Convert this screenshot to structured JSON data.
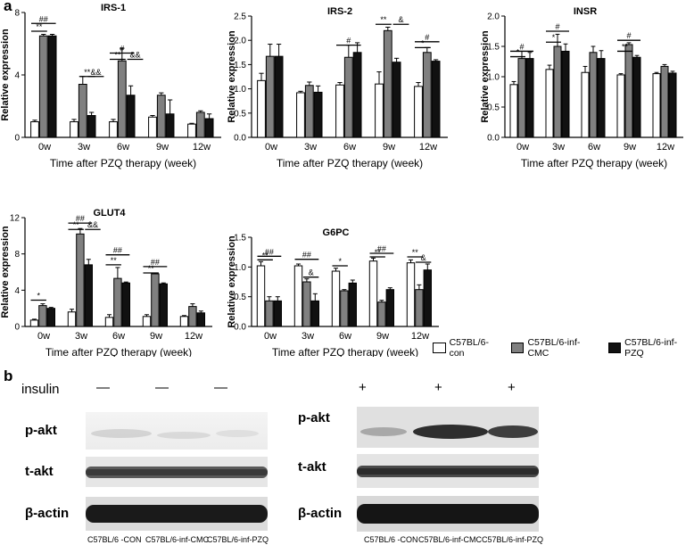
{
  "panel_a_label": "a",
  "panel_b_label": "b",
  "colors": {
    "con": "#ffffff",
    "cmc": "#808080",
    "pzq": "#111111"
  },
  "chart_data": [
    {
      "type": "bar",
      "title": "IRS-1",
      "categories": [
        "0w",
        "3w",
        "6w",
        "9w",
        "12w"
      ],
      "ylabel": "Relative expression",
      "xlabel": "Time after PZQ therapy (week)",
      "ylim": [
        0,
        8
      ],
      "yticks": [
        0,
        4,
        8
      ],
      "series": [
        {
          "name": "C57BL/6-con",
          "values": [
            1.0,
            1.0,
            1.0,
            1.3,
            0.85
          ],
          "err": [
            0.1,
            0.15,
            0.15,
            0.1,
            0.05
          ]
        },
        {
          "name": "C57BL/6-inf-CMC",
          "values": [
            6.5,
            3.4,
            4.9,
            2.7,
            1.6
          ],
          "err": [
            0.1,
            0.5,
            0.8,
            0.15,
            0.1
          ]
        },
        {
          "name": "C57BL/6-inf-PZQ",
          "values": [
            6.5,
            1.4,
            2.7,
            1.5,
            1.2
          ],
          "err": [
            0.1,
            0.2,
            0.6,
            0.9,
            0.3
          ]
        }
      ],
      "annotations": [
        {
          "text": "##",
          "x1": 0,
          "x2": 2,
          "y": 7.3
        },
        {
          "text": "**",
          "x1": 0,
          "x2": 1,
          "y": 6.8
        },
        {
          "text": "**",
          "x1": 1,
          "x2": 2,
          "y": 3.9
        },
        {
          "text": "&&",
          "x1": 2,
          "x2": 3,
          "y": 3.9
        },
        {
          "text": "#",
          "x1": 0,
          "x2": 2,
          "y": 5.4
        },
        {
          "text": "**",
          "x1": 0,
          "x2": 1,
          "y": 5.0
        },
        {
          "text": "&&",
          "x1": 2,
          "x2": 3,
          "y": 5.0
        }
      ]
    },
    {
      "type": "bar",
      "title": "IRS-2",
      "categories": [
        "0w",
        "3w",
        "6w",
        "9w",
        "12w"
      ],
      "ylabel": "Relative expression",
      "xlabel": "Time after PZQ therapy (week)",
      "ylim": [
        0,
        2.5
      ],
      "yticks": [
        0,
        0.5,
        1.0,
        1.5,
        2.0,
        2.5
      ],
      "series": [
        {
          "name": "C57BL/6-con",
          "values": [
            1.17,
            0.92,
            1.08,
            1.1,
            1.05
          ],
          "err": [
            0.15,
            0.03,
            0.05,
            0.25,
            0.08
          ]
        },
        {
          "name": "C57BL/6-inf-CMC",
          "values": [
            1.67,
            1.07,
            1.65,
            2.2,
            1.75
          ],
          "err": [
            0.25,
            0.07,
            0.25,
            0.07,
            0.1
          ]
        },
        {
          "name": "C57BL/6-inf-PZQ",
          "values": [
            1.67,
            0.93,
            1.75,
            1.55,
            1.57
          ],
          "err": [
            0.25,
            0.13,
            0.2,
            0.08,
            0.03
          ]
        }
      ],
      "annotations": [
        {
          "text": "#",
          "x1": 0,
          "x2": 2,
          "y": 1.9
        },
        {
          "text": "**",
          "x1": 0,
          "x2": 1,
          "y": 2.33
        },
        {
          "text": "&",
          "x1": 2,
          "x2": 3,
          "y": 2.33
        },
        {
          "text": "#",
          "x1": 0,
          "x2": 2,
          "y": 1.97
        },
        {
          "text": "*",
          "x1": 0,
          "x2": 1,
          "y": 1.85
        }
      ]
    },
    {
      "type": "bar",
      "title": "INSR",
      "categories": [
        "0w",
        "3w",
        "6w",
        "9w",
        "12w"
      ],
      "ylabel": "Relative expression",
      "xlabel": "Time after PZQ therapy (week)",
      "ylim": [
        0,
        2.0
      ],
      "yticks": [
        0,
        0.5,
        1.0,
        1.5,
        2.0
      ],
      "series": [
        {
          "name": "C57BL/6-con",
          "values": [
            0.87,
            1.12,
            1.07,
            1.03,
            1.05
          ],
          "err": [
            0.05,
            0.07,
            0.1,
            0.02,
            0.02
          ]
        },
        {
          "name": "C57BL/6-inf-CMC",
          "values": [
            1.3,
            1.5,
            1.4,
            1.53,
            1.17
          ],
          "err": [
            0.12,
            0.2,
            0.1,
            0.03,
            0.03
          ]
        },
        {
          "name": "C57BL/6-inf-PZQ",
          "values": [
            1.3,
            1.42,
            1.3,
            1.32,
            1.06
          ],
          "err": [
            0.1,
            0.12,
            0.13,
            0.03,
            0.03
          ]
        }
      ],
      "annotations": [
        {
          "text": "#",
          "x1": 0,
          "x2": 2,
          "y": 1.42
        },
        {
          "text": "*",
          "x1": 0,
          "x2": 1,
          "y": 1.33
        },
        {
          "text": "#",
          "x1": 0,
          "x2": 2,
          "y": 1.75
        },
        {
          "text": "*",
          "x1": 0,
          "x2": 1,
          "y": 1.57
        },
        {
          "text": "#",
          "x1": 0,
          "x2": 2,
          "y": 1.6
        },
        {
          "text": "**",
          "x1": 0,
          "x2": 1,
          "y": 1.42
        }
      ]
    },
    {
      "type": "bar",
      "title": "GLUT4",
      "categories": [
        "0w",
        "3w",
        "6w",
        "9w",
        "12w"
      ],
      "ylabel": "Relative expression",
      "xlabel": "Time after PZQ therapy (week)",
      "ylim": [
        0,
        12
      ],
      "yticks": [
        0,
        4,
        8,
        12
      ],
      "series": [
        {
          "name": "C57BL/6-con",
          "values": [
            0.7,
            1.6,
            1.0,
            1.1,
            1.1
          ],
          "err": [
            0.1,
            0.3,
            0.3,
            0.2,
            0.1
          ]
        },
        {
          "name": "C57BL/6-inf-CMC",
          "values": [
            2.3,
            10.2,
            5.3,
            5.8,
            2.2
          ],
          "err": [
            0.2,
            0.6,
            1.2,
            0.1,
            0.3
          ]
        },
        {
          "name": "C57BL/6-inf-PZQ",
          "values": [
            2.0,
            6.8,
            4.8,
            4.7,
            1.5
          ],
          "err": [
            0.1,
            0.6,
            0.1,
            0.1,
            0.2
          ]
        }
      ],
      "annotations": [
        {
          "text": "*",
          "x1": 0,
          "x2": 1,
          "y": 2.9
        },
        {
          "text": "##",
          "x1": 0,
          "x2": 2,
          "y": 11.4
        },
        {
          "text": "**",
          "x1": 0,
          "x2": 1,
          "y": 10.7
        },
        {
          "text": "&&",
          "x1": 2,
          "x2": 3,
          "y": 10.7
        },
        {
          "text": "##",
          "x1": 0,
          "x2": 2,
          "y": 7.9
        },
        {
          "text": "**",
          "x1": 0,
          "x2": 1,
          "y": 6.8
        },
        {
          "text": "##",
          "x1": 0,
          "x2": 2,
          "y": 6.6
        },
        {
          "text": "**",
          "x1": 0,
          "x2": 1,
          "y": 5.9
        }
      ]
    },
    {
      "type": "bar",
      "title": "G6PC",
      "categories": [
        "0w",
        "3w",
        "6w",
        "9w",
        "12w"
      ],
      "ylabel": "Relative expression",
      "xlabel": "Time after PZQ therapy (week)",
      "ylim": [
        0,
        1.5
      ],
      "yticks": [
        0.0,
        0.5,
        1.0,
        1.5
      ],
      "series": [
        {
          "name": "C57BL/6-con",
          "values": [
            1.02,
            1.02,
            0.93,
            1.1,
            1.07
          ],
          "err": [
            0.07,
            0.03,
            0.05,
            0.05,
            0.05
          ]
        },
        {
          "name": "C57BL/6-inf-CMC",
          "values": [
            0.43,
            0.75,
            0.6,
            0.41,
            0.62
          ],
          "err": [
            0.07,
            0.05,
            0.02,
            0.03,
            0.08
          ]
        },
        {
          "name": "C57BL/6-inf-PZQ",
          "values": [
            0.43,
            0.43,
            0.73,
            0.62,
            0.95
          ],
          "err": [
            0.07,
            0.12,
            0.05,
            0.03,
            0.1
          ]
        }
      ],
      "annotations": [
        {
          "text": "##",
          "x1": 0,
          "x2": 2,
          "y": 1.18
        },
        {
          "text": "**",
          "x1": 0,
          "x2": 1,
          "y": 1.12
        },
        {
          "text": "##",
          "x1": 0,
          "x2": 2,
          "y": 1.13
        },
        {
          "text": "&",
          "x1": 1,
          "x2": 2,
          "y": 0.83
        },
        {
          "text": "*",
          "x1": 0,
          "x2": 1,
          "y": 1.02
        },
        {
          "text": "##",
          "x1": 0,
          "x2": 2,
          "y": 1.23
        },
        {
          "text": "**",
          "x1": 0,
          "x2": 1,
          "y": 1.17
        },
        {
          "text": "**",
          "x1": 0,
          "x2": 1,
          "y": 1.17
        },
        {
          "text": "&",
          "x1": 1,
          "x2": 2,
          "y": 1.08
        }
      ]
    }
  ],
  "legend": {
    "items": [
      "C57BL/6-con",
      "C57BL/6-inf-CMC",
      "C57BL/6-inf-PZQ"
    ]
  },
  "western": {
    "insulin_label": "insulin",
    "left_signs": [
      "—",
      "—",
      "—"
    ],
    "right_signs": [
      "+",
      "+",
      "+"
    ],
    "rows": [
      "p-akt",
      "t-akt",
      "β-actin"
    ],
    "lanes": [
      "C57BL/6 -CON",
      "C57BL/6-inf-CMC",
      "C57BL/6-inf-PZQ"
    ]
  }
}
